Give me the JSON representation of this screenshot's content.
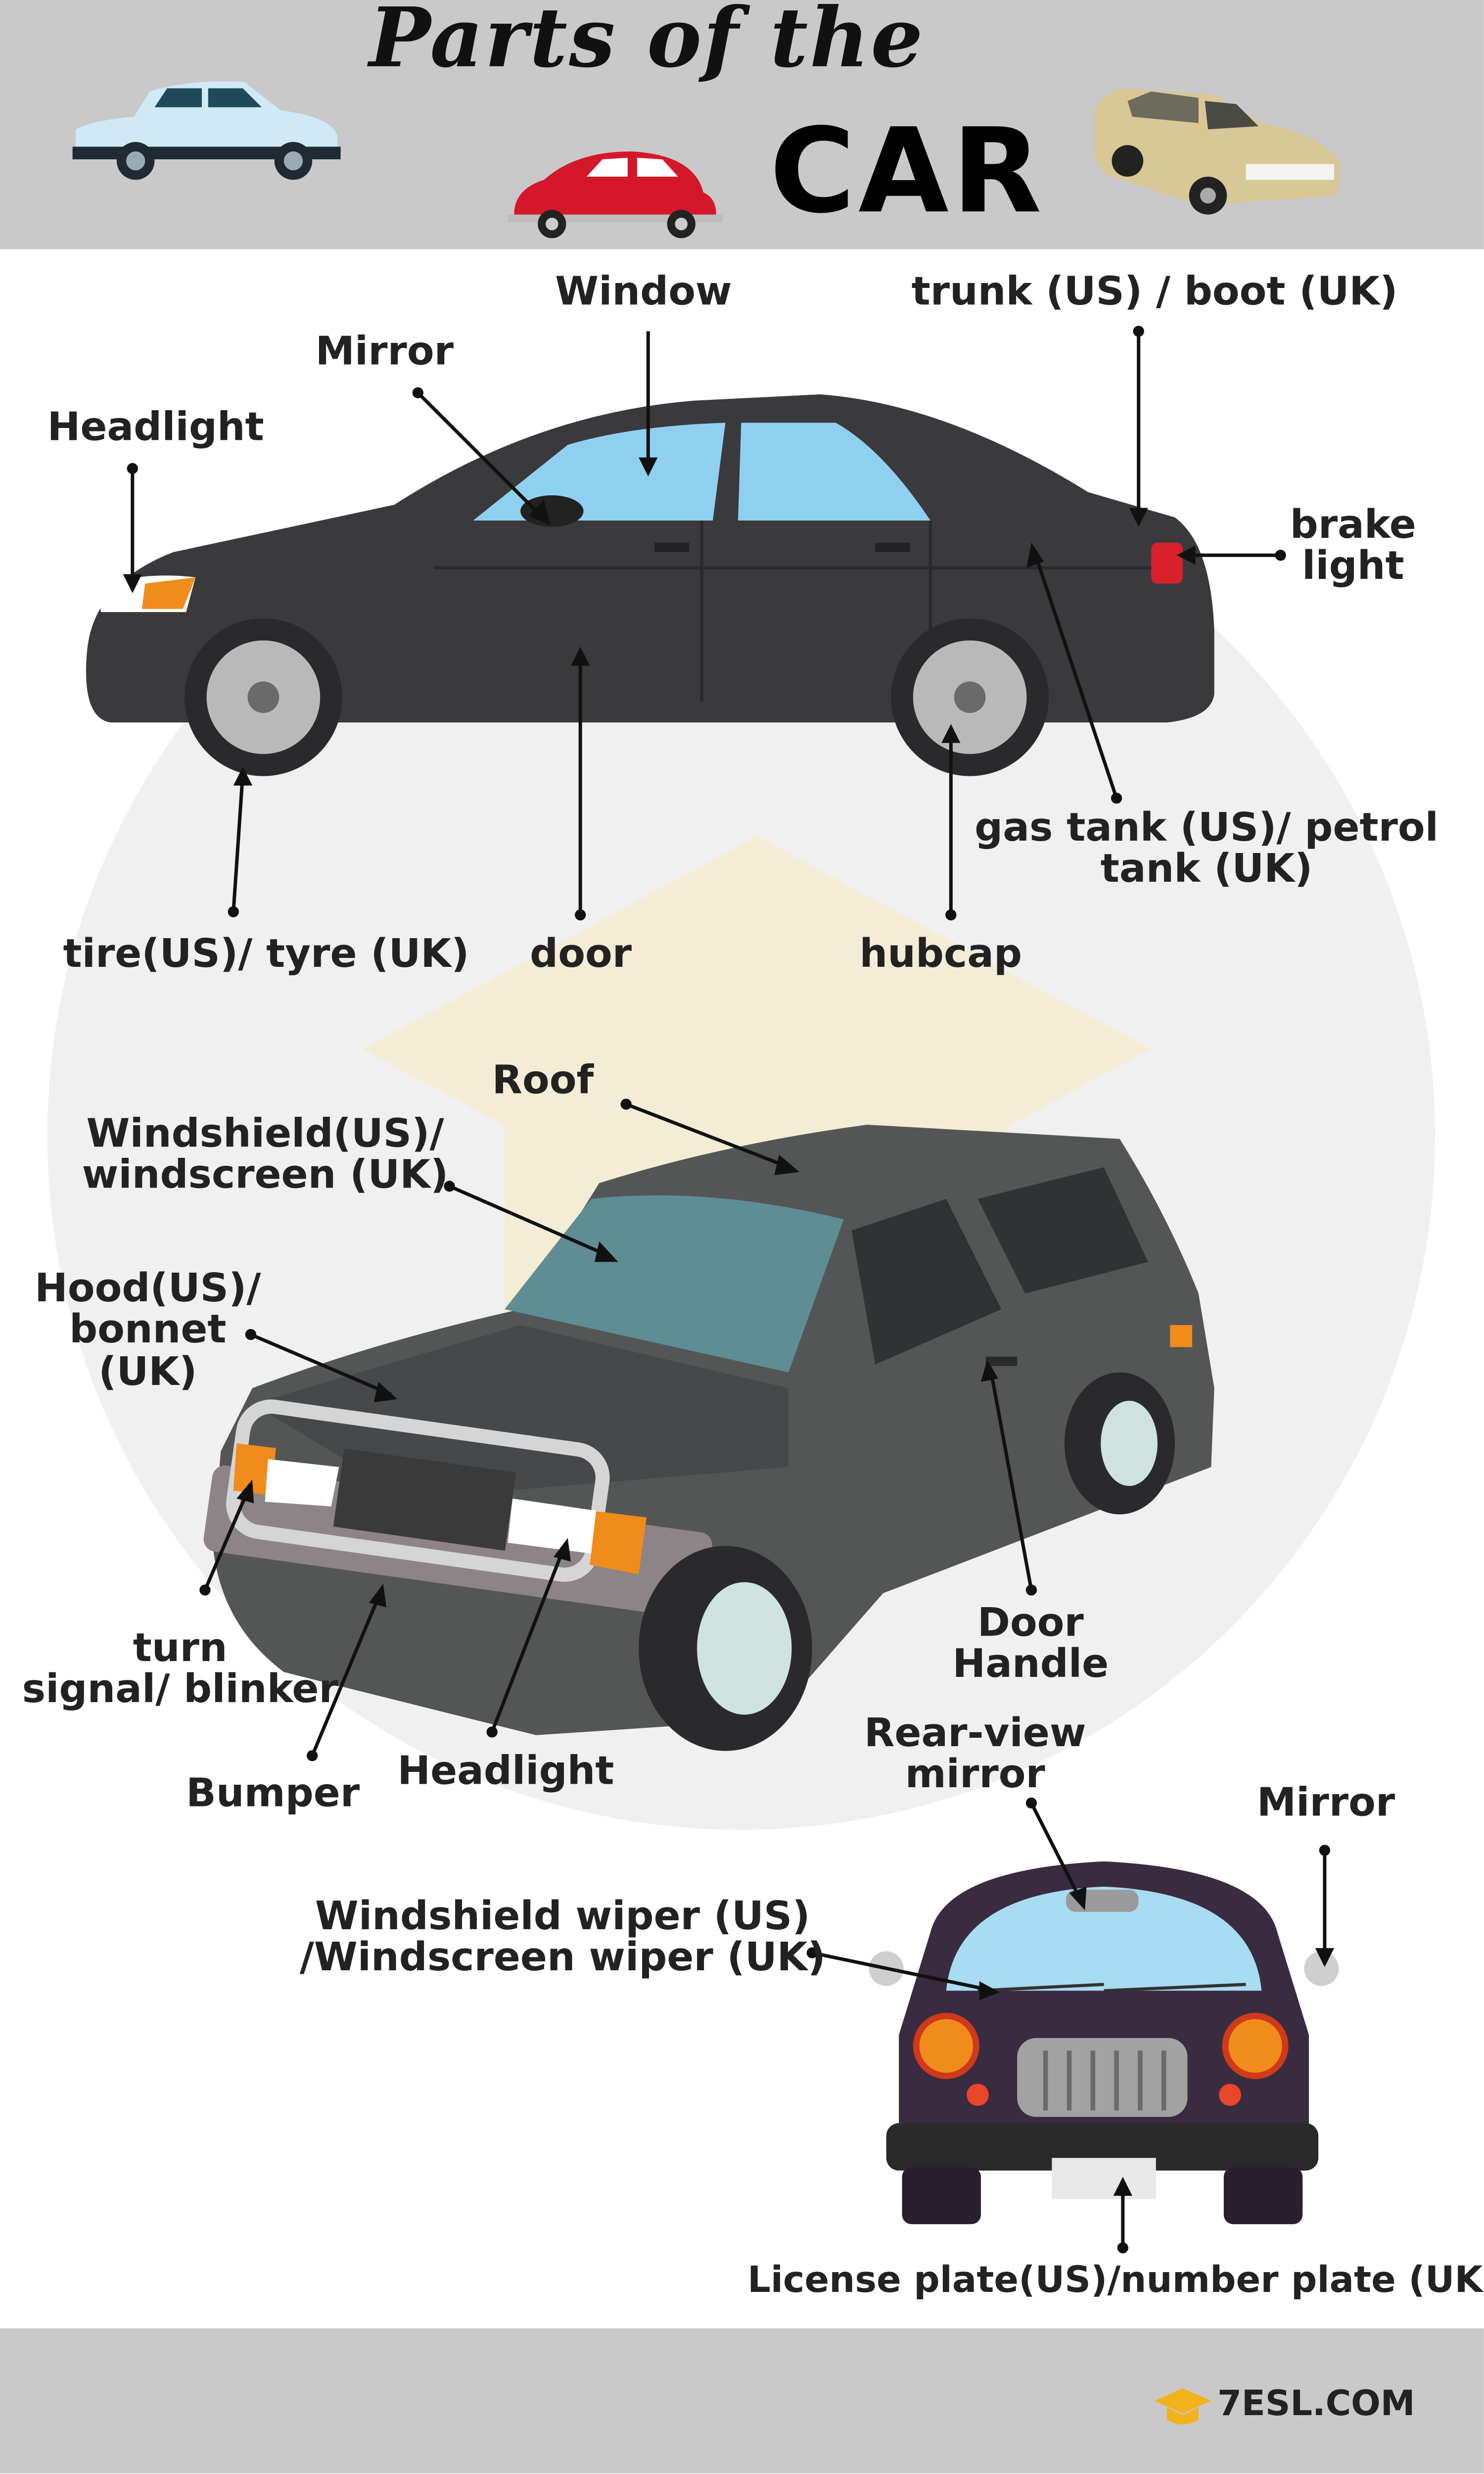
{
  "header": {
    "title_line1": "Parts of the",
    "title_line2": "CAR"
  },
  "labels": {
    "window": "Window",
    "trunk": "trunk (US) / boot (UK)",
    "mirror_top": "Mirror",
    "headlight_top": "Headlight",
    "brake_light": "brake\nlight",
    "gas_tank": "gas tank (US)/ petrol\ntank (UK)",
    "tire": "tire(US)/ tyre (UK)",
    "door": "door",
    "hubcap": "hubcap",
    "roof": "Roof",
    "windshield": "Windshield(US)/\nwindscreen (UK)",
    "hood": "Hood(US)/\nbonnet\n(UK)",
    "turn_signal": "turn\nsignal/ blinker",
    "door_handle": "Door\nHandle",
    "bumper": "Bumper",
    "headlight_mid": "Headlight",
    "rear_view_mirror": "Rear-view\nmirror",
    "mirror_bottom": "Mirror",
    "wiper": "Windshield wiper (US)\n/Windscreen wiper (UK)",
    "license_plate": "License plate(US)/number plate (UK)"
  },
  "footer": {
    "logo_text": "7ESL.COM",
    "logo_icon": "graduation-cap-icon"
  },
  "colors": {
    "band": "#c9c9c9",
    "car_body": "#3a3a3d",
    "glass": "#8fd0f0",
    "suv_body": "#545656",
    "taxi_body": "#3a2c40",
    "accent_orange": "#f08c1c",
    "brake_red": "#d8202a"
  }
}
